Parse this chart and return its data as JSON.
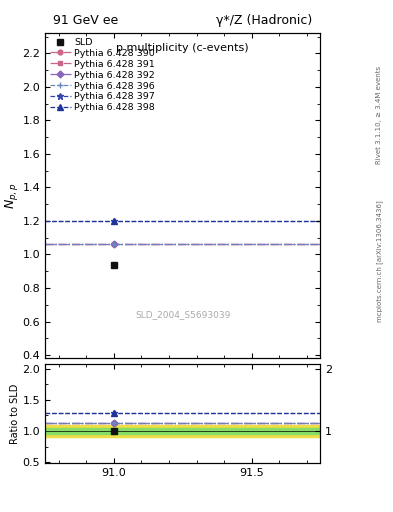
{
  "title_left": "91 GeV ee",
  "title_right": "γ*/Z (Hadronic)",
  "plot_title": "p multiplicity (c-events)",
  "ylabel_main": "$N_{p,p}$",
  "ylabel_ratio": "Ratio to SLD",
  "watermark": "SLD_2004_S5693039",
  "right_label_top": "Rivet 3.1.10, ≥ 3.4M events",
  "right_label_bottom": "mcplots.cern.ch [arXiv:1306.3436]",
  "x_center": 91.0,
  "x_min": 90.75,
  "x_max": 91.75,
  "x_ticks": [
    91.0,
    91.5
  ],
  "sld_value": 0.935,
  "sld_color": "#111111",
  "ylim_main": [
    0.38,
    2.32
  ],
  "ylim_ratio": [
    0.48,
    2.08
  ],
  "yticks_main": [
    0.4,
    0.6,
    0.8,
    1.0,
    1.2,
    1.4,
    1.6,
    1.8,
    2.0,
    2.2
  ],
  "yticks_ratio": [
    0.5,
    1.0,
    1.5,
    2.0
  ],
  "pythia_lines": [
    {
      "label": "Pythia 6.428 390",
      "value": 1.06,
      "color": "#cc6688",
      "linestyle": "-.",
      "marker": "o",
      "markersize": 3.5
    },
    {
      "label": "Pythia 6.428 391",
      "value": 1.06,
      "color": "#cc6688",
      "linestyle": "-.",
      "marker": "s",
      "markersize": 3.5
    },
    {
      "label": "Pythia 6.428 392",
      "value": 1.06,
      "color": "#8866bb",
      "linestyle": "-.",
      "marker": "D",
      "markersize": 3.5
    },
    {
      "label": "Pythia 6.428 396",
      "value": 1.06,
      "color": "#6688bb",
      "linestyle": "--",
      "marker": "+",
      "markersize": 4
    },
    {
      "label": "Pythia 6.428 397",
      "value": 1.2,
      "color": "#3344aa",
      "linestyle": "--",
      "marker": "*",
      "markersize": 5
    },
    {
      "label": "Pythia 6.428 398",
      "value": 1.2,
      "color": "#223399",
      "linestyle": "--",
      "marker": "^",
      "markersize": 4
    }
  ],
  "green_band_half": 0.05,
  "yellow_band_half": 0.1,
  "green_color": "#88dd66",
  "yellow_color": "#eedd44",
  "sld_marker": "s",
  "sld_markersize": 5
}
